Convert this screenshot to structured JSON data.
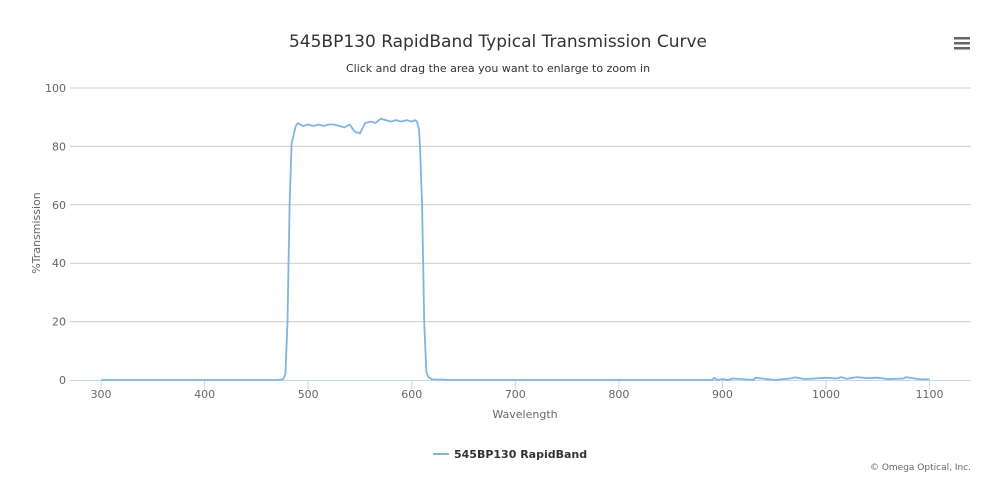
{
  "header": {
    "title": "545BP130 RapidBand Typical Transmission Curve",
    "subtitle": "Click and drag the area you want to enlarge to zoom in",
    "credits": "© Omega Optical, Inc."
  },
  "menu": {
    "icon": "hamburger-menu-icon"
  },
  "chart_data": {
    "type": "line",
    "title": "545BP130 RapidBand Typical Transmission Curve",
    "subtitle": "Click and drag the area you want to enlarge to zoom in",
    "xlabel": "Wavelength",
    "ylabel": "%Transmission",
    "xlim": [
      270,
      1140
    ],
    "ylim": [
      0,
      100
    ],
    "x_ticks": [
      "300",
      "400",
      "500",
      "600",
      "700",
      "800",
      "900",
      "1000",
      "1100"
    ],
    "y_ticks": [
      "0",
      "20",
      "40",
      "60",
      "80",
      "100"
    ],
    "grid": "horizontal",
    "legend_position": "bottom-center",
    "series": [
      {
        "name": "545BP130 RapidBand",
        "color": "#7cb5ec",
        "x": [
          300,
          400,
          470,
          476,
          478,
          480,
          482,
          484,
          486,
          488,
          490,
          495,
          500,
          505,
          510,
          515,
          520,
          525,
          530,
          535,
          540,
          545,
          550,
          555,
          560,
          565,
          570,
          575,
          580,
          585,
          590,
          595,
          600,
          603,
          605,
          607,
          608,
          610,
          612,
          614,
          616,
          620,
          640,
          700,
          800,
          890,
          892,
          895,
          900,
          905,
          910,
          930,
          932,
          950,
          965,
          970,
          980,
          1000,
          1010,
          1015,
          1020,
          1030,
          1040,
          1050,
          1060,
          1075,
          1077,
          1090,
          1100
        ],
        "y": [
          0,
          0,
          0,
          0.3,
          2,
          20,
          60,
          81,
          84,
          87,
          88,
          87,
          87.5,
          87,
          87.5,
          87,
          87.5,
          87.5,
          87,
          86.5,
          87.5,
          85,
          84.5,
          88,
          88.5,
          88,
          89.5,
          89,
          88.5,
          89,
          88.5,
          89,
          88.5,
          89,
          88.5,
          86,
          80,
          60,
          20,
          3,
          1,
          0.2,
          0,
          0,
          0,
          0,
          0.8,
          0,
          0.3,
          0,
          0.5,
          0,
          0.8,
          0,
          0.5,
          0.9,
          0.3,
          0.8,
          0.5,
          1,
          0.4,
          1,
          0.6,
          0.8,
          0.3,
          0.5,
          1,
          0.3,
          0.2
        ]
      }
    ]
  }
}
